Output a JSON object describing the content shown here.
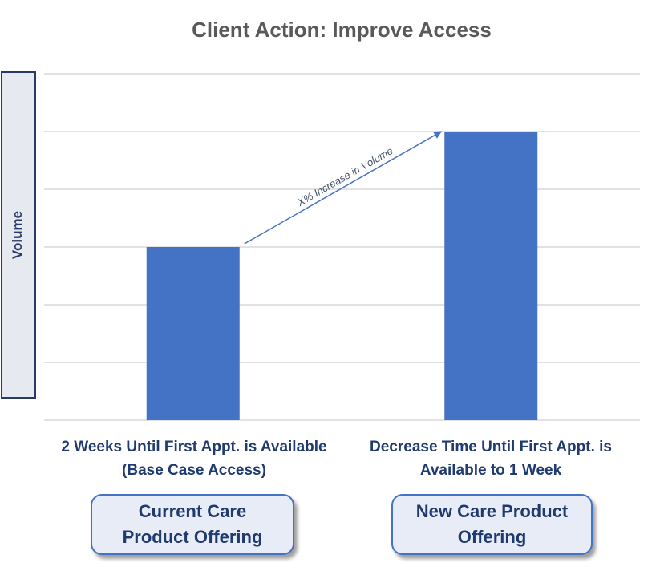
{
  "chart_data": {
    "type": "bar",
    "title": "Client Action: Improve Access",
    "ylabel": "Volume",
    "categories": [
      "2 Weeks Until First Appt. is Available (Base Case Access)",
      "Decrease Time Until First Appt. is Available to 1 Week"
    ],
    "category_lines": [
      [
        "2 Weeks Until First Appt. is Available",
        "(Base Case Access)"
      ],
      [
        "Decrease Time Until First Appt. is",
        "Available to 1 Week"
      ]
    ],
    "values": [
      3,
      5
    ],
    "ylim": [
      0,
      6
    ],
    "grid": true,
    "bar_color": "#4472c4",
    "annotation": "X% Increase in Volume"
  },
  "offerings": [
    {
      "lines": [
        "Current Care",
        "Product Offering"
      ]
    },
    {
      "lines": [
        "New Care Product",
        "Offering"
      ]
    }
  ]
}
